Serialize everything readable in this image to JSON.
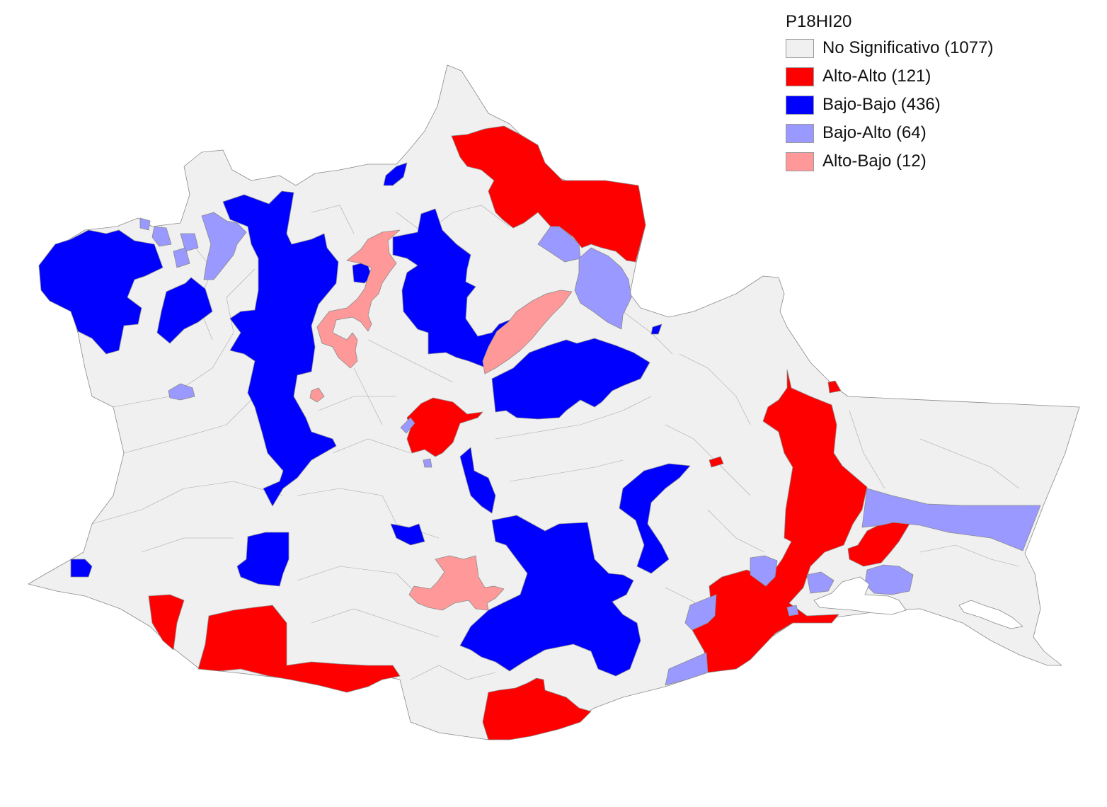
{
  "legend": {
    "title": "P18HI20",
    "items": [
      {
        "label": "No Significativo (1077)",
        "color": "#f0f0f0",
        "category": "no-significativo"
      },
      {
        "label": "Alto-Alto (121)",
        "color": "#ff0000",
        "category": "alto-alto"
      },
      {
        "label": "Bajo-Bajo (436)",
        "color": "#0000ff",
        "category": "bajo-bajo"
      },
      {
        "label": "Bajo-Alto (64)",
        "color": "#9999ff",
        "category": "bajo-alto"
      },
      {
        "label": "Alto-Bajo (12)",
        "color": "#ff9999",
        "category": "alto-bajo"
      }
    ]
  }
}
